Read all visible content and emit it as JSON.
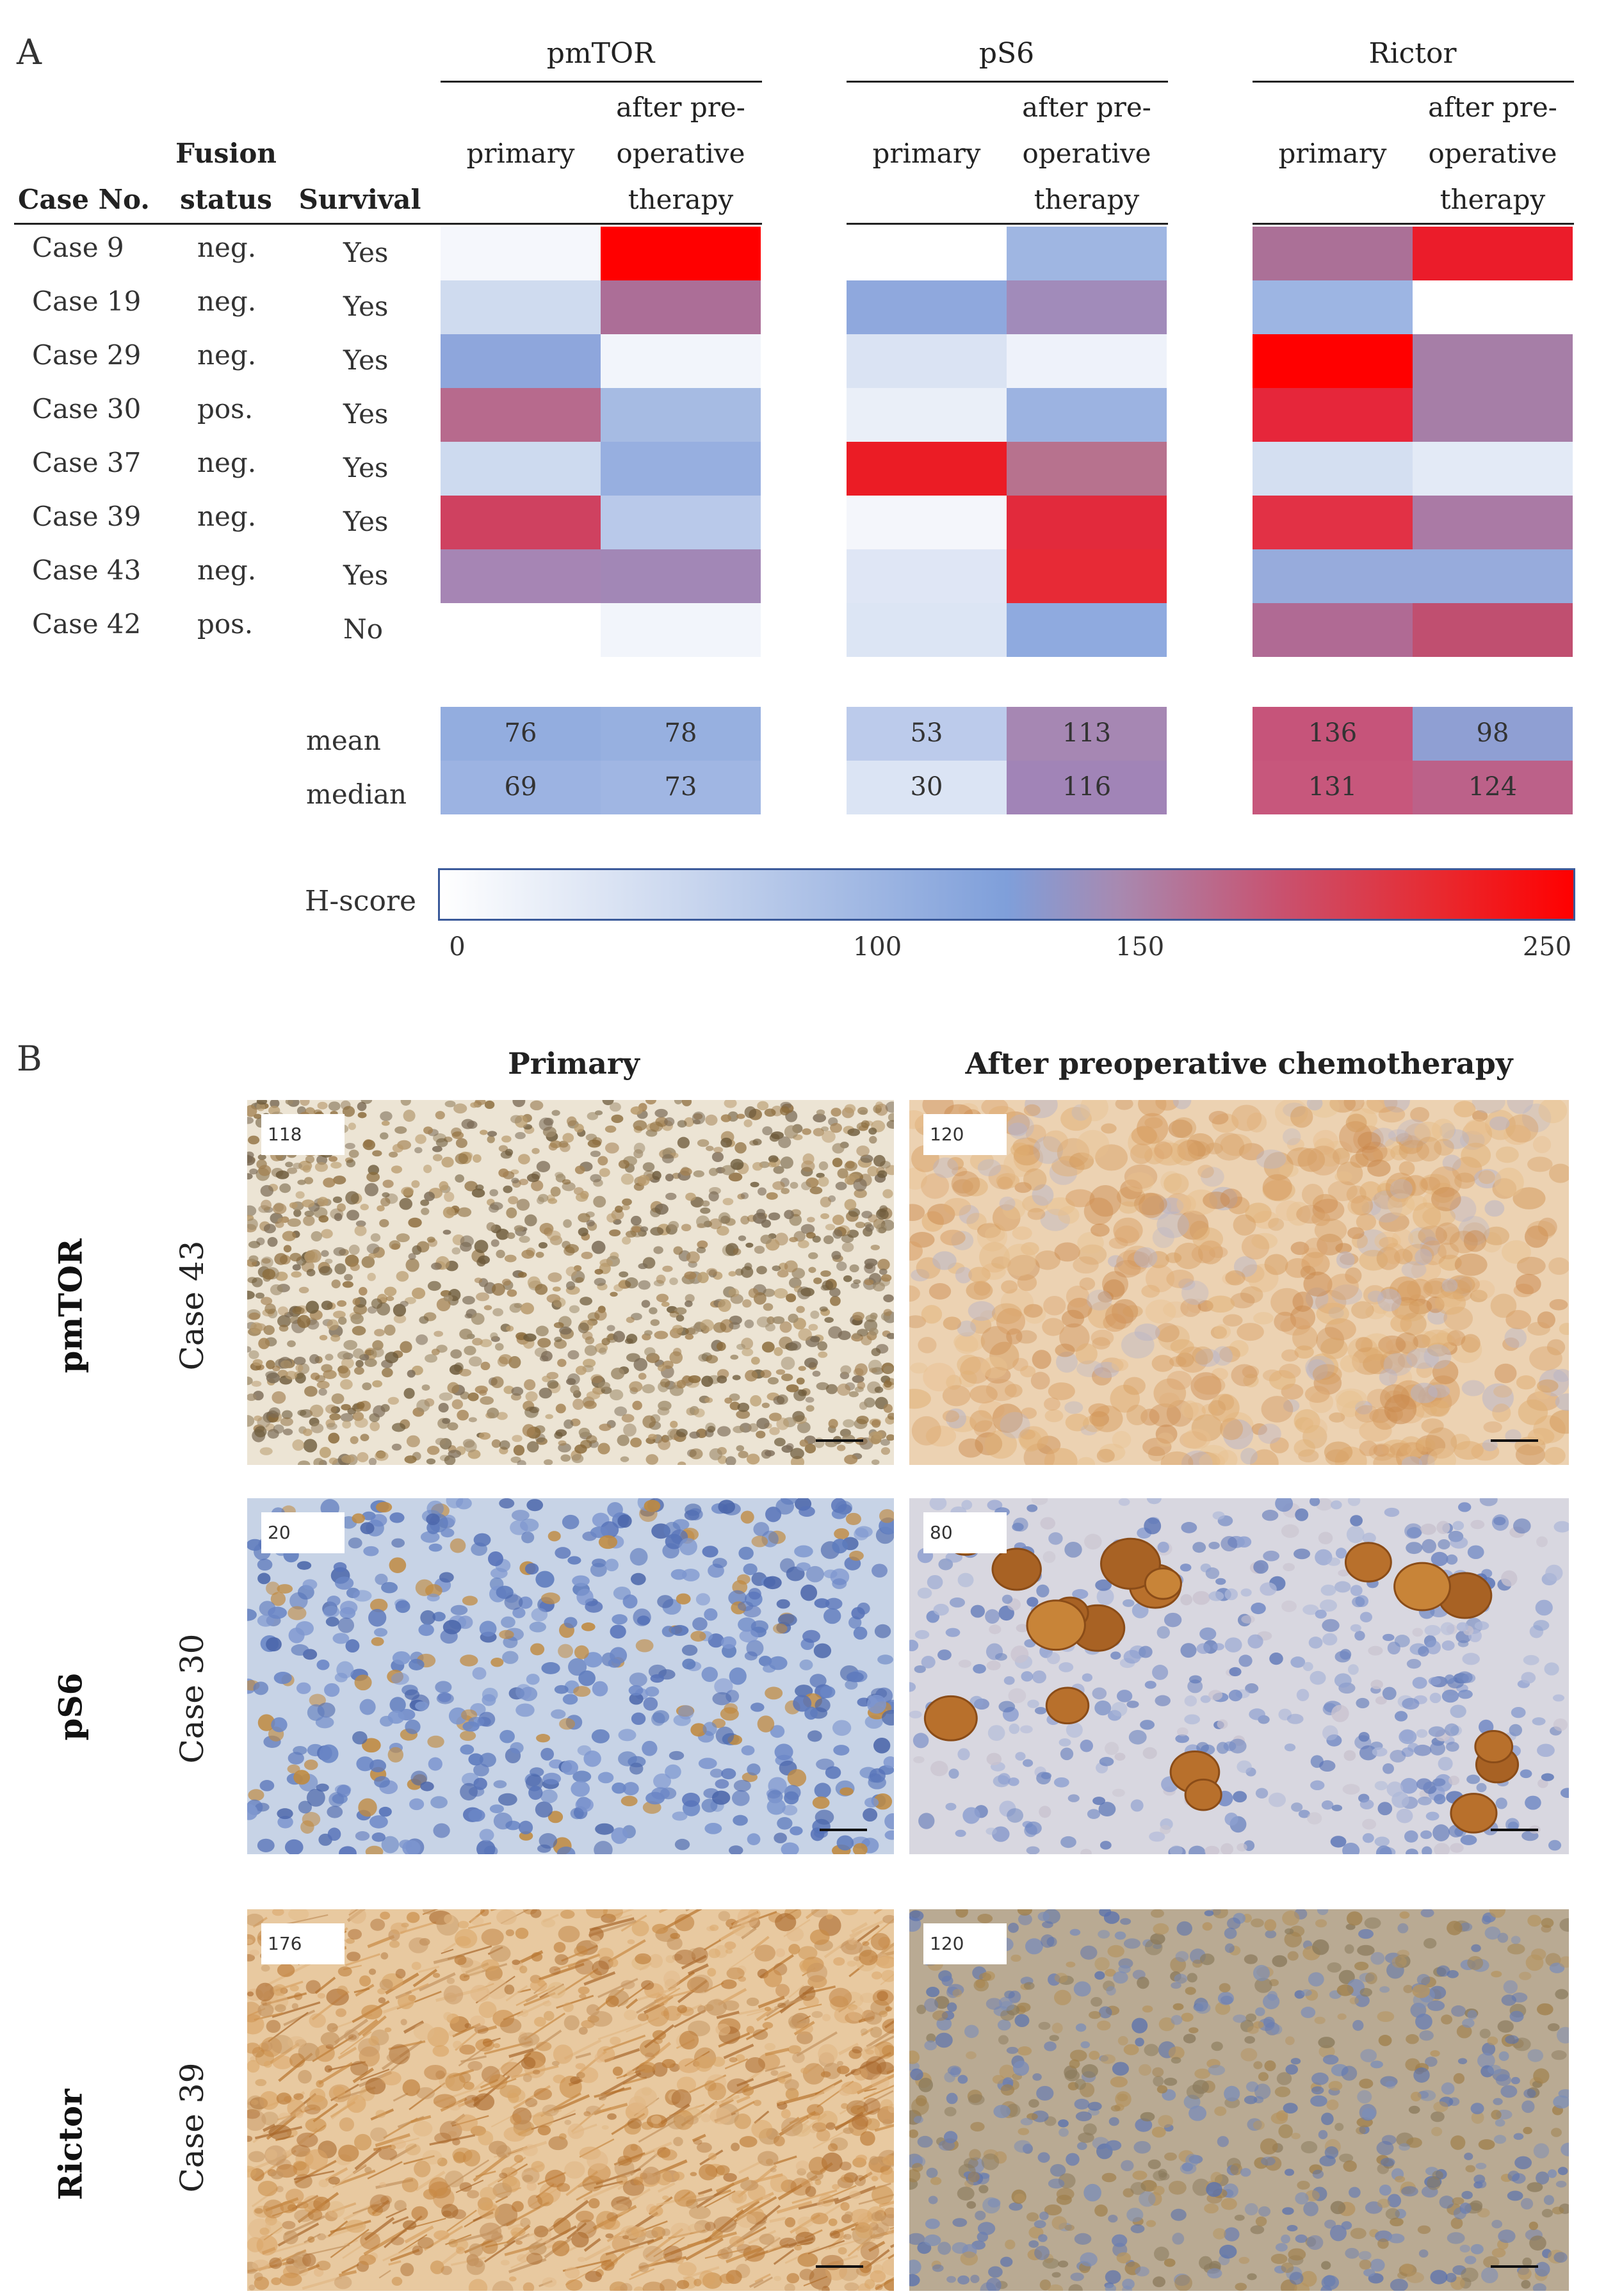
{
  "panel_a": {
    "letter": "A",
    "headers": {
      "case_no": "Case No.",
      "fusion_status": [
        "Fusion",
        "status"
      ],
      "survival": "Survival",
      "primary": "primary",
      "after": [
        "after pre-",
        "operative",
        "therapy"
      ]
    },
    "groups": [
      "pmTOR",
      "pS6",
      "Rictor"
    ],
    "rows": [
      {
        "case": "Case 9",
        "fusion": "neg.",
        "survival": "Yes"
      },
      {
        "case": "Case 19",
        "fusion": "neg.",
        "survival": "Yes"
      },
      {
        "case": "Case 29",
        "fusion": "neg.",
        "survival": "Yes"
      },
      {
        "case": "Case 30",
        "fusion": "pos.",
        "survival": "Yes"
      },
      {
        "case": "Case 37",
        "fusion": "neg.",
        "survival": "Yes"
      },
      {
        "case": "Case 39",
        "fusion": "neg.",
        "survival": "Yes"
      },
      {
        "case": "Case 43",
        "fusion": "neg.",
        "survival": "Yes"
      },
      {
        "case": "Case 42",
        "fusion": "pos.",
        "survival": "No"
      }
    ],
    "heatmap_colors": [
      [
        "#f5f7fc",
        "#ff0000",
        "#ffffff",
        "#9fb6e2",
        "#ab7097",
        "#eb1c2a"
      ],
      [
        "#cfdbef",
        "#ac6e97",
        "#8fa8dd",
        "#a18bba",
        "#9db5e3",
        "#ffffff"
      ],
      [
        "#8ea6dc",
        "#f2f5fb",
        "#dae3f3",
        "#eef2fa",
        "#ff0000",
        "#a67ea7"
      ],
      [
        "#b76a8d",
        "#a6bbe3",
        "#eaeff8",
        "#9cb3e1",
        "#e6263a",
        "#a67ea7"
      ],
      [
        "#cddaef",
        "#97afe0",
        "#eb1c25",
        "#b7728e",
        "#d4dff1",
        "#e3eaf6"
      ],
      [
        "#cf4160",
        "#b9c9ea",
        "#f4f6fb",
        "#e22a3c",
        "#e23145",
        "#aa7aa5"
      ],
      [
        "#a685b4",
        "#a287b6",
        "#dfe6f5",
        "#e72a36",
        "#97abdc",
        "#97abdc"
      ],
      [
        "#ffffff",
        "#f2f5fb",
        "#dce5f4",
        "#8faadf",
        "#b06a94",
        "#c04f70"
      ]
    ],
    "stats": {
      "mean_label": "mean",
      "median_label": "median",
      "mean_values": [
        76,
        78,
        53,
        113,
        136,
        98
      ],
      "median_values": [
        69,
        73,
        30,
        116,
        131,
        124
      ],
      "mean_colors": [
        "#93addf",
        "#97b0e0",
        "#bccbeb",
        "#a687b3",
        "#c6547a",
        "#8f9fd3"
      ],
      "median_colors": [
        "#9cb3e2",
        "#a0b6e3",
        "#dbe4f4",
        "#a184b7",
        "#c7577c",
        "#bc6189"
      ]
    },
    "legend": {
      "label": "H-score",
      "ticks": [
        "0",
        "100",
        "150",
        "250"
      ],
      "tick_values": [
        0,
        100,
        150,
        250
      ]
    }
  },
  "panel_b": {
    "letter": "B",
    "col_primary": "Primary",
    "col_after": "After preoperative chemotherapy",
    "rows": [
      {
        "marker": "pmTOR",
        "case": "Case 43",
        "primary_score": "118",
        "after_score": "120"
      },
      {
        "marker": "pS6",
        "case": "Case 30",
        "primary_score": "20",
        "after_score": "80"
      },
      {
        "marker": "Rictor",
        "case": "Case 39",
        "primary_score": "176",
        "after_score": "120"
      }
    ],
    "tissue_colors": {
      "bg_pmtor_primary": "#ece4d4",
      "bg_pmtor_after": "#ecd2b2",
      "bg_ps6_primary": "#c7d3e6",
      "bg_ps6_after": "#d8d7e0",
      "bg_rictor_primary": "#e8c9a0",
      "bg_rictor_after": "#b9aa93"
    }
  }
}
